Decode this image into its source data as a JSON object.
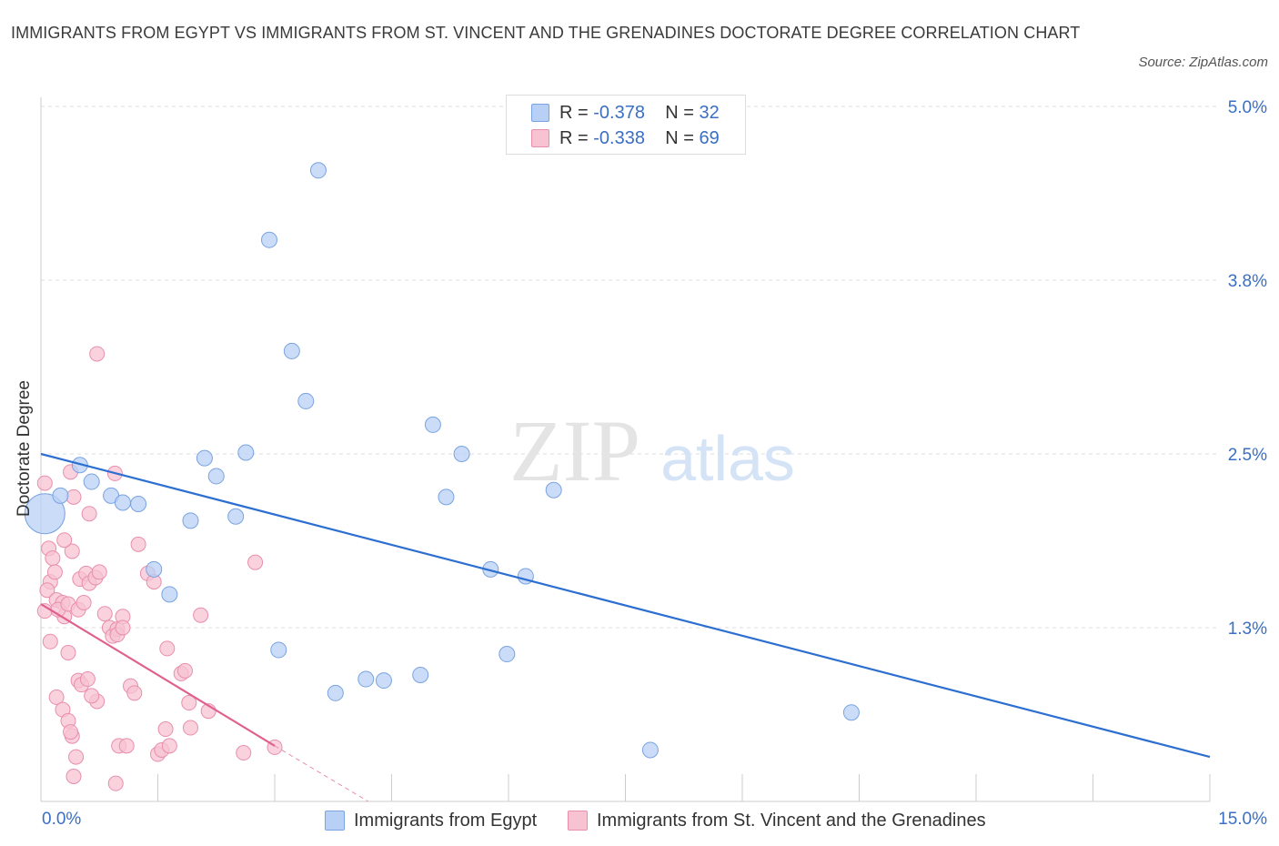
{
  "header": {
    "title": "IMMIGRANTS FROM EGYPT VS IMMIGRANTS FROM ST. VINCENT AND THE GRENADINES DOCTORATE DEGREE CORRELATION CHART",
    "source": "Source: ZipAtlas.com"
  },
  "watermark": {
    "zip": "ZIP",
    "atlas": "atlas"
  },
  "legend_top": {
    "egypt": {
      "r_label": "R = ",
      "r_value": "-0.378",
      "n_label": "N = ",
      "n_value": "32"
    },
    "svg": {
      "r_label": "R = ",
      "r_value": "-0.338",
      "n_label": "N = ",
      "n_value": "69"
    }
  },
  "legend_bottom": {
    "egypt": "Immigrants from Egypt",
    "svg": "Immigrants from St. Vincent and the Grenadines"
  },
  "colors": {
    "egypt_fill": "#b8d0f5",
    "egypt_stroke": "#7aa3e0",
    "egypt_line": "#2c6fd1",
    "svg_fill": "#f7c3d3",
    "svg_stroke": "#e98eac",
    "svg_line": "#e0608e",
    "grid": "#dcdcdc",
    "tick_text": "#3a6fc4"
  },
  "chart_data": {
    "type": "scatter",
    "title": "IMMIGRANTS FROM EGYPT VS IMMIGRANTS FROM ST. VINCENT AND THE GRENADINES DOCTORATE DEGREE CORRELATION CHART",
    "xlabel": "",
    "ylabel": "Doctorate Degree",
    "xlim": [
      0,
      15
    ],
    "ylim": [
      0,
      5
    ],
    "x_tick_labels": {
      "0": "0.0%",
      "15": "15.0%"
    },
    "y_ticks": [
      {
        "value": 1.25,
        "label": "1.3%"
      },
      {
        "value": 2.5,
        "label": "2.5%"
      },
      {
        "value": 3.75,
        "label": "3.8%"
      },
      {
        "value": 5.0,
        "label": "5.0%"
      }
    ],
    "x_minor_ticks": [
      1.5,
      3.0,
      4.5,
      6.0,
      7.5,
      9.0,
      10.5,
      12.0,
      13.5,
      15.0
    ],
    "legend_position": "top-center",
    "series": [
      {
        "name": "Immigrants from Egypt",
        "R": -0.378,
        "N": 32,
        "points": [
          {
            "x": 0.05,
            "y": 2.07,
            "big": true
          },
          {
            "x": 0.25,
            "y": 2.2
          },
          {
            "x": 0.5,
            "y": 2.42
          },
          {
            "x": 0.65,
            "y": 2.3
          },
          {
            "x": 0.9,
            "y": 2.2
          },
          {
            "x": 1.05,
            "y": 2.15
          },
          {
            "x": 1.25,
            "y": 2.14
          },
          {
            "x": 1.45,
            "y": 1.67
          },
          {
            "x": 1.65,
            "y": 1.49
          },
          {
            "x": 1.92,
            "y": 2.02
          },
          {
            "x": 2.1,
            "y": 2.47
          },
          {
            "x": 2.25,
            "y": 2.34
          },
          {
            "x": 2.5,
            "y": 2.05
          },
          {
            "x": 2.63,
            "y": 2.51
          },
          {
            "x": 2.93,
            "y": 4.04
          },
          {
            "x": 3.05,
            "y": 1.09
          },
          {
            "x": 3.22,
            "y": 3.24
          },
          {
            "x": 3.4,
            "y": 2.88
          },
          {
            "x": 3.56,
            "y": 4.54
          },
          {
            "x": 3.78,
            "y": 0.78
          },
          {
            "x": 4.17,
            "y": 0.88
          },
          {
            "x": 4.4,
            "y": 0.87
          },
          {
            "x": 4.87,
            "y": 0.91
          },
          {
            "x": 5.03,
            "y": 2.71
          },
          {
            "x": 5.2,
            "y": 2.19
          },
          {
            "x": 5.4,
            "y": 2.5
          },
          {
            "x": 5.77,
            "y": 1.67
          },
          {
            "x": 5.98,
            "y": 1.06
          },
          {
            "x": 6.22,
            "y": 1.62
          },
          {
            "x": 6.58,
            "y": 2.24
          },
          {
            "x": 7.82,
            "y": 0.37
          },
          {
            "x": 10.4,
            "y": 0.64
          }
        ],
        "trend": {
          "x": [
            0,
            15
          ],
          "y": [
            2.5,
            0.32
          ]
        }
      },
      {
        "name": "Immigrants from St. Vincent and the Grenadines",
        "R": -0.338,
        "N": 69,
        "points": [
          {
            "x": 0.05,
            "y": 2.29
          },
          {
            "x": 0.1,
            "y": 1.82
          },
          {
            "x": 0.15,
            "y": 1.75
          },
          {
            "x": 0.12,
            "y": 1.58
          },
          {
            "x": 0.18,
            "y": 1.65
          },
          {
            "x": 0.08,
            "y": 1.52
          },
          {
            "x": 0.2,
            "y": 1.45
          },
          {
            "x": 0.05,
            "y": 1.37
          },
          {
            "x": 0.12,
            "y": 1.15
          },
          {
            "x": 0.28,
            "y": 1.43
          },
          {
            "x": 0.3,
            "y": 1.33
          },
          {
            "x": 0.22,
            "y": 1.38
          },
          {
            "x": 0.35,
            "y": 1.42
          },
          {
            "x": 0.4,
            "y": 1.8
          },
          {
            "x": 0.38,
            "y": 2.37
          },
          {
            "x": 0.42,
            "y": 2.19
          },
          {
            "x": 0.48,
            "y": 1.38
          },
          {
            "x": 0.5,
            "y": 1.6
          },
          {
            "x": 0.58,
            "y": 1.64
          },
          {
            "x": 0.62,
            "y": 1.57
          },
          {
            "x": 0.7,
            "y": 1.61
          },
          {
            "x": 0.55,
            "y": 1.43
          },
          {
            "x": 0.75,
            "y": 1.65
          },
          {
            "x": 0.62,
            "y": 2.07
          },
          {
            "x": 0.3,
            "y": 1.88
          },
          {
            "x": 0.35,
            "y": 1.07
          },
          {
            "x": 0.48,
            "y": 0.87
          },
          {
            "x": 0.52,
            "y": 0.84
          },
          {
            "x": 0.6,
            "y": 0.88
          },
          {
            "x": 0.2,
            "y": 0.75
          },
          {
            "x": 0.28,
            "y": 0.66
          },
          {
            "x": 0.35,
            "y": 0.58
          },
          {
            "x": 0.4,
            "y": 0.47
          },
          {
            "x": 0.38,
            "y": 0.5
          },
          {
            "x": 0.45,
            "y": 0.32
          },
          {
            "x": 0.42,
            "y": 0.18
          },
          {
            "x": 0.72,
            "y": 0.72
          },
          {
            "x": 0.65,
            "y": 0.76
          },
          {
            "x": 0.82,
            "y": 1.35
          },
          {
            "x": 0.88,
            "y": 1.25
          },
          {
            "x": 0.92,
            "y": 1.19
          },
          {
            "x": 0.98,
            "y": 1.24
          },
          {
            "x": 1.05,
            "y": 1.33
          },
          {
            "x": 0.95,
            "y": 2.36
          },
          {
            "x": 0.98,
            "y": 1.2
          },
          {
            "x": 0.72,
            "y": 3.22
          },
          {
            "x": 1.0,
            "y": 0.4
          },
          {
            "x": 0.96,
            "y": 0.13
          },
          {
            "x": 1.15,
            "y": 0.83
          },
          {
            "x": 1.1,
            "y": 0.4
          },
          {
            "x": 1.05,
            "y": 1.25
          },
          {
            "x": 1.25,
            "y": 1.85
          },
          {
            "x": 1.2,
            "y": 0.78
          },
          {
            "x": 1.37,
            "y": 1.64
          },
          {
            "x": 1.45,
            "y": 1.58
          },
          {
            "x": 1.5,
            "y": 0.34
          },
          {
            "x": 1.55,
            "y": 0.37
          },
          {
            "x": 1.6,
            "y": 0.52
          },
          {
            "x": 1.65,
            "y": 0.4
          },
          {
            "x": 1.62,
            "y": 1.1
          },
          {
            "x": 1.8,
            "y": 0.92
          },
          {
            "x": 1.85,
            "y": 0.94
          },
          {
            "x": 1.9,
            "y": 0.71
          },
          {
            "x": 1.92,
            "y": 0.53
          },
          {
            "x": 2.15,
            "y": 0.65
          },
          {
            "x": 2.05,
            "y": 1.34
          },
          {
            "x": 2.75,
            "y": 1.72
          },
          {
            "x": 2.6,
            "y": 0.35
          },
          {
            "x": 3.0,
            "y": 0.39
          }
        ],
        "trend": {
          "x": [
            0,
            3.0
          ],
          "y": [
            1.42,
            0.4
          ]
        },
        "trend_extension": {
          "x": [
            3.0,
            4.2
          ],
          "y": [
            0.4,
            0.0
          ]
        }
      }
    ]
  }
}
